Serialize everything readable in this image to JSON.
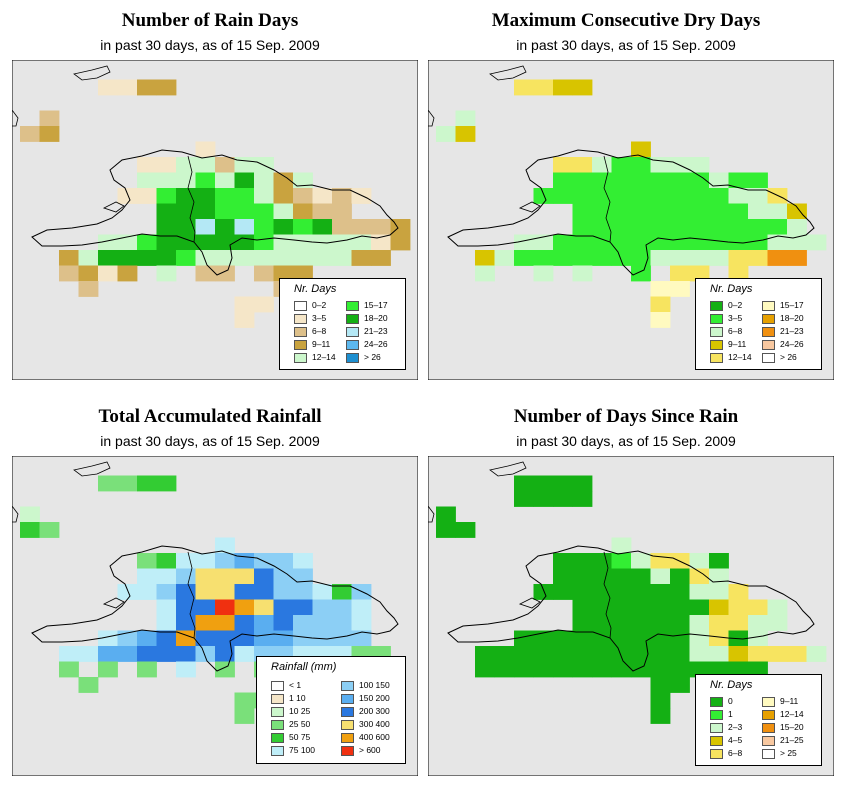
{
  "subtitle": "in past 30 days, as of  15 Sep. 2009",
  "colors": {
    "ocean": "#e6e6e6",
    "coast": "#000000"
  },
  "panels": [
    {
      "id": "rain-days",
      "title": "Number of Rain Days",
      "legend_title": "Nr. Days",
      "legend": [
        {
          "label": "0–2",
          "color": "#ffffff"
        },
        {
          "label": "3–5",
          "color": "#f5e6c8"
        },
        {
          "label": "6–8",
          "color": "#ddc08a"
        },
        {
          "label": "9–11",
          "color": "#c9a33f"
        },
        {
          "label": "12–14",
          "color": "#ccf7cc"
        },
        {
          "label": "15–17",
          "color": "#33ee33"
        },
        {
          "label": "18–20",
          "color": "#14b014"
        },
        {
          "label": "21–23",
          "color": "#b4e8f5"
        },
        {
          "label": "24–26",
          "color": "#5cb8ee"
        },
        {
          "label": "> 26",
          "color": "#1e8fd0"
        }
      ]
    },
    {
      "id": "max-dry-days",
      "title": "Maximum Consecutive Dry Days",
      "legend_title": "Nr. Days",
      "legend": [
        {
          "label": "0–2",
          "color": "#14b014"
        },
        {
          "label": "3–5",
          "color": "#33ee33"
        },
        {
          "label": "6–8",
          "color": "#ccf7cc"
        },
        {
          "label": "9–11",
          "color": "#d8c400"
        },
        {
          "label": "12–14",
          "color": "#f7e460"
        },
        {
          "label": "15–17",
          "color": "#fffac0"
        },
        {
          "label": "18–20",
          "color": "#e6a000"
        },
        {
          "label": "21–23",
          "color": "#f09010"
        },
        {
          "label": "24–26",
          "color": "#f8c8a0"
        },
        {
          "label": "> 26",
          "color": "#ffffff"
        }
      ]
    },
    {
      "id": "total-rainfall",
      "title": "Total Accumulated Rainfall",
      "legend_title": "Rainfall (mm)",
      "legend": [
        {
          "label": "< 1",
          "color": "#ffffff"
        },
        {
          "label": "1   10",
          "color": "#f5e6c8"
        },
        {
          "label": "10   25",
          "color": "#ccf7cc"
        },
        {
          "label": "25   50",
          "color": "#7ae07a"
        },
        {
          "label": "50   75",
          "color": "#33cc33"
        },
        {
          "label": "75  100",
          "color": "#bfeef8"
        },
        {
          "label": "100  150",
          "color": "#8ccff5"
        },
        {
          "label": "150  200",
          "color": "#5aaef0"
        },
        {
          "label": "200  300",
          "color": "#2a78e0"
        },
        {
          "label": "300  400",
          "color": "#f7e070"
        },
        {
          "label": "400  600",
          "color": "#f0a010"
        },
        {
          "label": "> 600",
          "color": "#f03010"
        }
      ]
    },
    {
      "id": "days-since-rain",
      "title": "Number of Days Since Rain",
      "legend_title": "Nr. Days",
      "legend": [
        {
          "label": "0",
          "color": "#14b014"
        },
        {
          "label": "1",
          "color": "#33ee33"
        },
        {
          "label": "2–3",
          "color": "#ccf7cc"
        },
        {
          "label": "4–5",
          "color": "#d8c400"
        },
        {
          "label": "6–8",
          "color": "#f7e460"
        },
        {
          "label": "9–11",
          "color": "#fffac0"
        },
        {
          "label": "12–14",
          "color": "#e6a000"
        },
        {
          "label": "15–20",
          "color": "#f09010"
        },
        {
          "label": "21–25",
          "color": "#f8c8a0"
        },
        {
          "label": "> 25",
          "color": "#ffffff"
        }
      ]
    }
  ]
}
